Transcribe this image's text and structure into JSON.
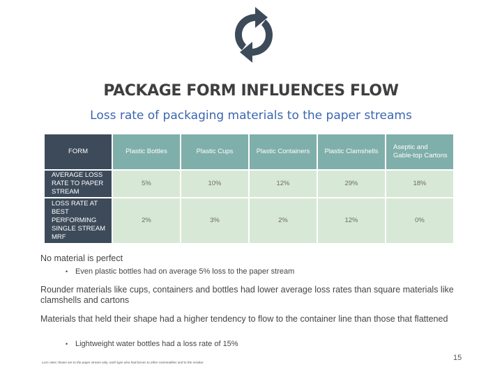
{
  "title": "PACKAGE FORM INFLUENCES FLOW",
  "subtitle": "Loss rate of packaging materials to the paper streams",
  "table": {
    "corner": "FORM",
    "columns": [
      "Plastic Bottles",
      "Plastic Cups",
      "Plastic Containers",
      "Plastic Clamshells",
      "Aseptic and Gable-top Cartons"
    ],
    "rows": [
      {
        "label": "AVERAGE LOSS RATE TO PAPER STREAM",
        "values": [
          "5%",
          "10%",
          "12%",
          "29%",
          "18%"
        ]
      },
      {
        "label": "LOSS RATE AT BEST PERFORMING SINGLE STREAM MRF",
        "values": [
          "2%",
          "3%",
          "2%",
          "12%",
          "0%"
        ]
      }
    ]
  },
  "body": {
    "line1": "No material is perfect",
    "bullet1": "Even plastic bottles had on average 5% loss to the paper stream",
    "line2": "Rounder materials like cups, containers and bottles had lower average loss rates than square materials like clamshells and cartons",
    "line3": "Materials that held their shape had a higher tendency to flow to the container line than those that flattened",
    "bullet2": "Lightweight water bottles had a loss rate of 15%",
    "bullet_char": "•"
  },
  "footnote": "Loss rates shown are to the paper stream only, each type also had losses to other commodities and to the residue",
  "page_number": "15",
  "colors": {
    "logo": "#3d4a5a",
    "title": "#3f3f3f",
    "subtitle": "#3a66b0",
    "table_dark": "#3d4a5a",
    "table_header": "#7fafaa",
    "table_cell": "#d8e8d6"
  },
  "icons": {
    "logo": "recycle-arrows-icon"
  }
}
